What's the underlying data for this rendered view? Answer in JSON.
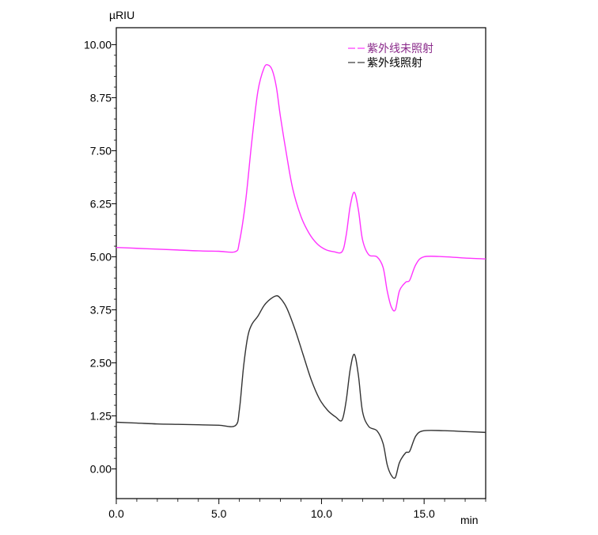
{
  "chart_data": {
    "type": "line",
    "ylabel": "µRIU",
    "xlabel": "min",
    "xlim": [
      0,
      18
    ],
    "ylim": [
      -0.7,
      10.4
    ],
    "x_ticks": [
      "0.0",
      "5.0",
      "10.0",
      "15.0"
    ],
    "x_tick_values": [
      0,
      5,
      10,
      15
    ],
    "y_ticks": [
      "0.00",
      "1.25",
      "2.50",
      "3.75",
      "5.00",
      "6.25",
      "7.50",
      "8.75",
      "10.00"
    ],
    "y_tick_values": [
      0,
      1.25,
      2.5,
      3.75,
      5.0,
      6.25,
      7.5,
      8.75,
      10.0
    ],
    "legend_position": "top-right",
    "series": [
      {
        "name": "紫外线未照射",
        "color": "#ff33ff",
        "dashed": true,
        "x": [
          0,
          1,
          2,
          3,
          4,
          5,
          5.8,
          6.0,
          6.3,
          6.6,
          6.9,
          7.2,
          7.4,
          7.6,
          7.8,
          8.0,
          8.3,
          8.6,
          9.0,
          9.4,
          9.8,
          10.2,
          10.6,
          11.0,
          11.2,
          11.4,
          11.6,
          11.8,
          12.0,
          12.3,
          12.7,
          13.0,
          13.2,
          13.4,
          13.6,
          13.8,
          14.1,
          14.3,
          14.6,
          15.0,
          16.0,
          17.0,
          18.0
        ],
        "y": [
          5.22,
          5.2,
          5.18,
          5.16,
          5.14,
          5.13,
          5.12,
          5.35,
          6.3,
          7.7,
          8.9,
          9.45,
          9.52,
          9.4,
          9.0,
          8.3,
          7.4,
          6.6,
          5.95,
          5.55,
          5.3,
          5.17,
          5.12,
          5.12,
          5.5,
          6.2,
          6.52,
          6.1,
          5.4,
          5.05,
          5.0,
          4.75,
          4.2,
          3.82,
          3.75,
          4.2,
          4.4,
          4.45,
          4.82,
          5.0,
          5.0,
          4.97,
          4.95
        ]
      },
      {
        "name": "紫外线照射",
        "color": "#333333",
        "dashed": false,
        "x": [
          0,
          1,
          2,
          3,
          4,
          5,
          5.8,
          6.0,
          6.2,
          6.4,
          6.6,
          6.9,
          7.2,
          7.5,
          7.8,
          8.0,
          8.3,
          8.7,
          9.1,
          9.5,
          9.9,
          10.3,
          10.7,
          11.0,
          11.2,
          11.4,
          11.6,
          11.8,
          12.0,
          12.3,
          12.7,
          13.0,
          13.2,
          13.4,
          13.6,
          13.8,
          14.1,
          14.3,
          14.6,
          15.0,
          16.0,
          17.0,
          18.0
        ],
        "y": [
          1.1,
          1.08,
          1.06,
          1.05,
          1.04,
          1.03,
          1.02,
          1.4,
          2.4,
          3.1,
          3.4,
          3.6,
          3.85,
          4.0,
          4.08,
          4.02,
          3.8,
          3.3,
          2.7,
          2.1,
          1.65,
          1.38,
          1.22,
          1.15,
          1.6,
          2.35,
          2.7,
          2.2,
          1.35,
          1.0,
          0.9,
          0.6,
          0.1,
          -0.15,
          -0.2,
          0.15,
          0.38,
          0.42,
          0.78,
          0.9,
          0.9,
          0.88,
          0.86
        ]
      }
    ]
  }
}
